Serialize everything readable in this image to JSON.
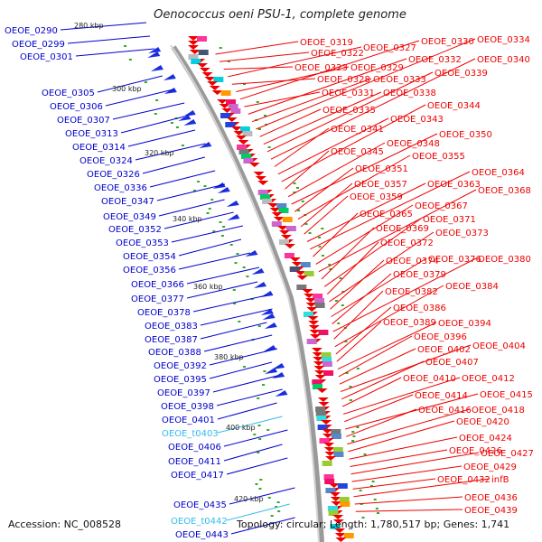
{
  "title": "Oenococcus oeni PSU-1, complete genome",
  "accession_text": "Accession: NC_008528",
  "stats_text": "Topology: circular; Length: 1,780,517 bp; Genes: 1,741",
  "colors": {
    "left_label": "#0000cc",
    "right_label": "#ee0000",
    "rna_label": "#33bbee",
    "backbone": "#999999"
  },
  "scale_ticks": [
    "280 kbp",
    "300 kbp",
    "320 kbp",
    "340 kbp",
    "360 kbp",
    "380 kbp",
    "400 kbp",
    "420 kbp"
  ],
  "left_labels": [
    {
      "text": "OEOE_0290",
      "kind": "cds"
    },
    {
      "text": "OEOE_0299",
      "kind": "cds"
    },
    {
      "text": "OEOE_0301",
      "kind": "cds"
    },
    {
      "text": "OEOE_0305",
      "kind": "cds"
    },
    {
      "text": "OEOE_0306",
      "kind": "cds"
    },
    {
      "text": "OEOE_0307",
      "kind": "cds"
    },
    {
      "text": "OEOE_0313",
      "kind": "cds"
    },
    {
      "text": "OEOE_0314",
      "kind": "cds"
    },
    {
      "text": "OEOE_0324",
      "kind": "cds"
    },
    {
      "text": "OEOE_0326",
      "kind": "cds"
    },
    {
      "text": "OEOE_0336",
      "kind": "cds"
    },
    {
      "text": "OEOE_0347",
      "kind": "cds"
    },
    {
      "text": "OEOE_0349",
      "kind": "cds"
    },
    {
      "text": "OEOE_0352",
      "kind": "cds"
    },
    {
      "text": "OEOE_0353",
      "kind": "cds"
    },
    {
      "text": "OEOE_0354",
      "kind": "cds"
    },
    {
      "text": "OEOE_0356",
      "kind": "cds"
    },
    {
      "text": "OEOE_0366",
      "kind": "cds"
    },
    {
      "text": "OEOE_0377",
      "kind": "cds"
    },
    {
      "text": "OEOE_0378",
      "kind": "cds"
    },
    {
      "text": "OEOE_0383",
      "kind": "cds"
    },
    {
      "text": "OEOE_0387",
      "kind": "cds"
    },
    {
      "text": "OEOE_0388",
      "kind": "cds"
    },
    {
      "text": "OEOE_0392",
      "kind": "cds"
    },
    {
      "text": "OEOE_0395",
      "kind": "cds"
    },
    {
      "text": "OEOE_0397",
      "kind": "cds"
    },
    {
      "text": "OEOE_0398",
      "kind": "cds"
    },
    {
      "text": "OEOE_0401",
      "kind": "cds"
    },
    {
      "text": "OEOE_t0403",
      "kind": "rna"
    },
    {
      "text": "OEOE_0406",
      "kind": "cds"
    },
    {
      "text": "OEOE_0411",
      "kind": "cds"
    },
    {
      "text": "OEOE_0417",
      "kind": "cds"
    },
    {
      "text": "OEOE_0435",
      "kind": "cds"
    },
    {
      "text": "OEOE_t0442",
      "kind": "rna"
    },
    {
      "text": "OEOE_0443",
      "kind": "cds"
    }
  ],
  "right_labels": [
    {
      "text": "OEOE_0319"
    },
    {
      "text": "OEOE_0322"
    },
    {
      "text": "OEOE_0323"
    },
    {
      "text": "OEOE_0327"
    },
    {
      "text": "OEOE_0328"
    },
    {
      "text": "OEOE_0329"
    },
    {
      "text": "OEOE_0330"
    },
    {
      "text": "OEOE_0331"
    },
    {
      "text": "OEOE_0332"
    },
    {
      "text": "OEOE_0333"
    },
    {
      "text": "OEOE_0334"
    },
    {
      "text": "OEOE_0335"
    },
    {
      "text": "OEOE_0338"
    },
    {
      "text": "OEOE_0339"
    },
    {
      "text": "OEOE_0340"
    },
    {
      "text": "OEOE_0341"
    },
    {
      "text": "OEOE_0343"
    },
    {
      "text": "OEOE_0344"
    },
    {
      "text": "OEOE_0345"
    },
    {
      "text": "OEOE_0348"
    },
    {
      "text": "OEOE_0350"
    },
    {
      "text": "OEOE_0351"
    },
    {
      "text": "OEOE_0355"
    },
    {
      "text": "OEOE_0357"
    },
    {
      "text": "OEOE_0359"
    },
    {
      "text": "OEOE_0363"
    },
    {
      "text": "OEOE_0364"
    },
    {
      "text": "OEOE_0365"
    },
    {
      "text": "OEOE_0367"
    },
    {
      "text": "OEOE_0368"
    },
    {
      "text": "OEOE_0369"
    },
    {
      "text": "OEOE_0371"
    },
    {
      "text": "OEOE_0372"
    },
    {
      "text": "OEOE_0373"
    },
    {
      "text": "OEOE_0374"
    },
    {
      "text": "OEOE_0376"
    },
    {
      "text": "OEOE_0379"
    },
    {
      "text": "OEOE_0380"
    },
    {
      "text": "OEOE_0382"
    },
    {
      "text": "OEOE_0384"
    },
    {
      "text": "OEOE_0386"
    },
    {
      "text": "OEOE_0389"
    },
    {
      "text": "OEOE_0394"
    },
    {
      "text": "OEOE_0396"
    },
    {
      "text": "OEOE_0402"
    },
    {
      "text": "OEOE_0404"
    },
    {
      "text": "OEOE_0407"
    },
    {
      "text": "OEOE_0410"
    },
    {
      "text": "OEOE_0412"
    },
    {
      "text": "OEOE_0414"
    },
    {
      "text": "OEOE_0415"
    },
    {
      "text": "OEOE_0416"
    },
    {
      "text": "OEOE_0418"
    },
    {
      "text": "OEOE_0420"
    },
    {
      "text": "OEOE_0424"
    },
    {
      "text": "OEOE_0426"
    },
    {
      "text": "OEOE_0427"
    },
    {
      "text": "OEOE_0429"
    },
    {
      "text": "OEOE_0432"
    },
    {
      "text": "infB"
    },
    {
      "text": "OEOE_0436"
    },
    {
      "text": "OEOE_0439"
    }
  ]
}
